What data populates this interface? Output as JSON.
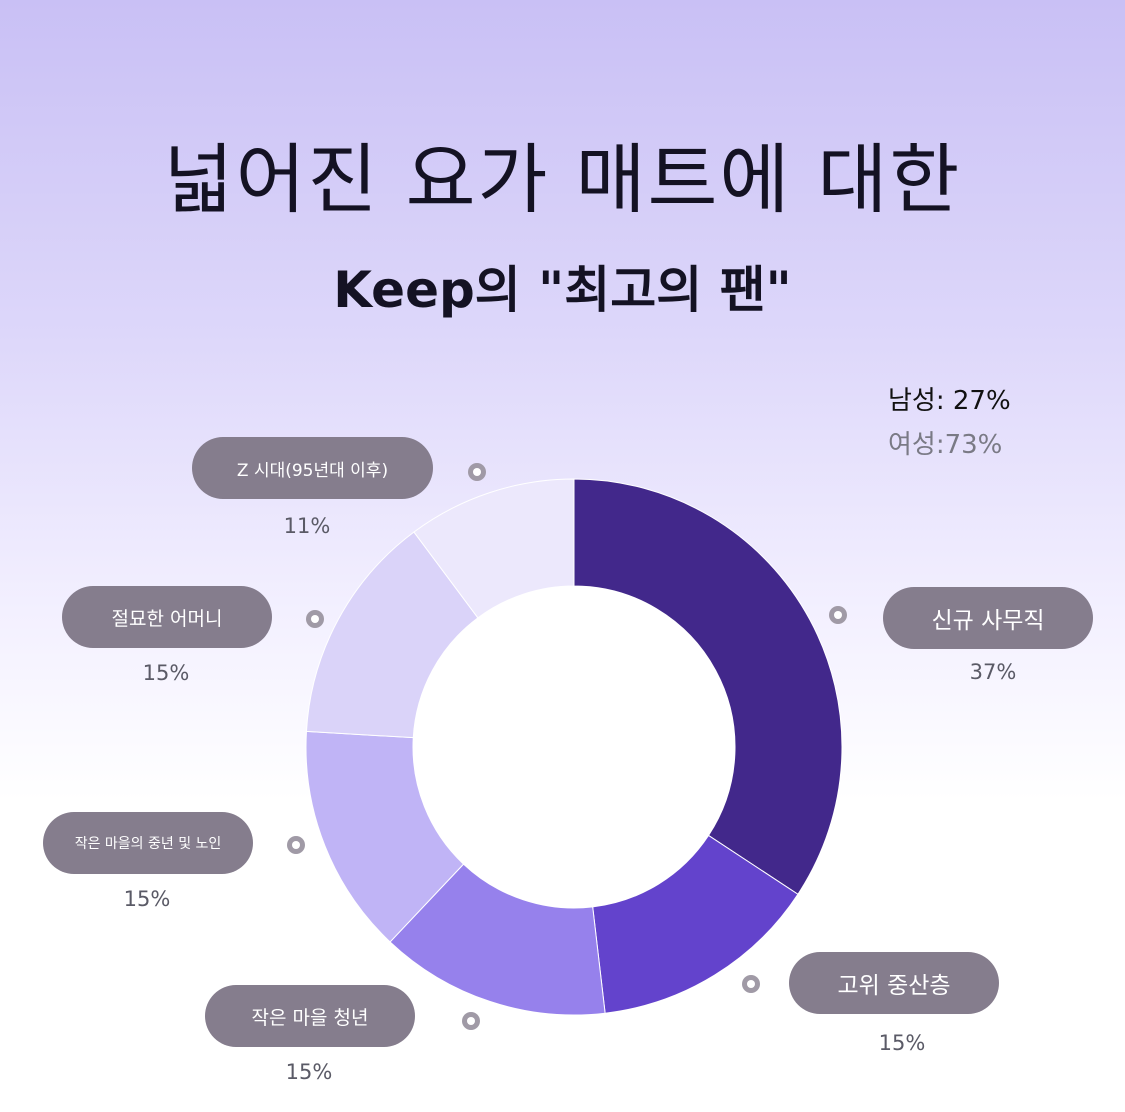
{
  "title": "넓어진 요가 매트에 대한",
  "subtitle": "Keep의 \"최고의 팬\"",
  "gender": {
    "male": "남성: 27%",
    "female": "여성:73%"
  },
  "chart_data": {
    "type": "pie",
    "donut": true,
    "title": "넓어진 요가 매트에 대한",
    "subtitle": "Keep의 \"최고의 팬\"",
    "categories": [
      "신규 사무직",
      "고위 중산층",
      "작은 마을 청년",
      "작은 마을의 중년 및 노인",
      "절묘한 어머니",
      "Z 시대(95년대 이후)"
    ],
    "values": [
      37,
      15,
      15,
      15,
      15,
      11
    ],
    "value_labels": [
      "37%",
      "15%",
      "15%",
      "15%",
      "15%",
      "11%"
    ],
    "colors": [
      "#42288b",
      "#6343cc",
      "#9681ec",
      "#c0b4f6",
      "#dad3f9",
      "#ece8fc"
    ],
    "start_angle_deg": 0,
    "direction": "clockwise",
    "annotations": [
      "남성: 27%",
      "여성:73%"
    ]
  }
}
